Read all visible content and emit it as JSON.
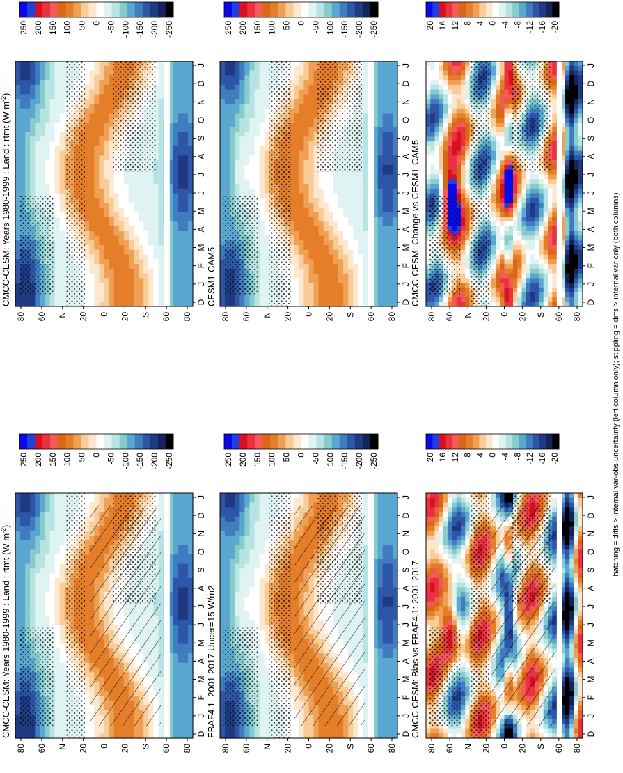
{
  "caption": "hatching = diffs > internal var-obs uncertainty (left column only); stippling = diffs > internal var only (both columns)",
  "colors": {
    "cmap_main": [
      "#0a0ae8",
      "#1f3fe0",
      "#d81020",
      "#e8323e",
      "#f45a5a",
      "#d96816",
      "#e47e28",
      "#efa054",
      "#f7cc96",
      "#fde8cf",
      "#ffffff",
      "#dff3f3",
      "#b8e3e3",
      "#87cccc",
      "#5aa8cf",
      "#3f7cc0",
      "#2d56a8",
      "#1f3a80",
      "#14245a",
      "#000000"
    ],
    "cmap_diff": [
      "#0a0ae8",
      "#1f3fe0",
      "#d81020",
      "#e8323e",
      "#f45a5a",
      "#d96816",
      "#e47e28",
      "#efa054",
      "#f7cc96",
      "#fde8cf",
      "#ffffff",
      "#dff3f3",
      "#b8e3e3",
      "#87cccc",
      "#5aa8cf",
      "#3f7cc0",
      "#2d56a8",
      "#1f3a80",
      "#14245a",
      "#000000"
    ]
  },
  "chart_data": [
    {
      "type": "heatmap",
      "id": "p1",
      "title": "CMCC-CESM: Years 1980-1999 : Land : rtmt (W m",
      "title_sup": "-2",
      "title_end": ")",
      "x": [
        "D",
        "J",
        "F",
        "M",
        "A",
        "M",
        "J",
        "J",
        "A",
        "S",
        "O",
        "N",
        "D",
        "J"
      ],
      "y_ticks": [
        "80",
        "60",
        "N",
        "20",
        "0",
        "20",
        "S",
        "60",
        "80"
      ],
      "y_range": [
        -90,
        90
      ],
      "colorbar_ticks": [
        "250",
        "200",
        "150",
        "100",
        "50",
        "0",
        "-50",
        "-100",
        "-150",
        "-200",
        "-250"
      ],
      "cmap": "main",
      "hatching": true,
      "stippling": true
    },
    {
      "type": "heatmap",
      "id": "p2",
      "title": "CMCC-CESM: Years 1980-1999 : Land : rtmt (W m",
      "title_sup": "-2",
      "title_end": ")",
      "x": [
        "D",
        "J",
        "F",
        "M",
        "A",
        "M",
        "J",
        "J",
        "A",
        "S",
        "O",
        "N",
        "D",
        "J"
      ],
      "y_ticks": [
        "80",
        "60",
        "N",
        "20",
        "0",
        "20",
        "S",
        "60",
        "80"
      ],
      "y_range": [
        -90,
        90
      ],
      "colorbar_ticks": [
        "250",
        "200",
        "150",
        "100",
        "50",
        "0",
        "-50",
        "-100",
        "-150",
        "-200",
        "-250"
      ],
      "cmap": "main",
      "hatching": false,
      "stippling": true
    },
    {
      "type": "heatmap",
      "id": "p3",
      "title": "EBAF4.1: 2001-2017 Uncer=15 W/m2",
      "x": [
        "D",
        "J",
        "F",
        "M",
        "A",
        "M",
        "J",
        "J",
        "A",
        "S",
        "O",
        "N",
        "D",
        "J"
      ],
      "y_ticks": [
        "80",
        "60",
        "N",
        "20",
        "0",
        "20",
        "S",
        "60",
        "80"
      ],
      "y_range": [
        -90,
        90
      ],
      "colorbar_ticks": [
        "250",
        "200",
        "150",
        "100",
        "50",
        "0",
        "-50",
        "-100",
        "-150",
        "-200",
        "-250"
      ],
      "cmap": "main",
      "hatching": true,
      "stippling": true
    },
    {
      "type": "heatmap",
      "id": "p4",
      "title": "CESM1-CAM5",
      "x": [
        "D",
        "J",
        "F",
        "M",
        "A",
        "M",
        "J",
        "J",
        "A",
        "S",
        "O",
        "N",
        "D",
        "J"
      ],
      "y_ticks": [
        "80",
        "60",
        "N",
        "20",
        "0",
        "20",
        "S",
        "60",
        "80"
      ],
      "y_range": [
        -90,
        90
      ],
      "colorbar_ticks": [
        "250",
        "200",
        "150",
        "100",
        "50",
        "0",
        "-50",
        "-100",
        "-150",
        "-200",
        "-250"
      ],
      "cmap": "main",
      "hatching": false,
      "stippling": true
    },
    {
      "type": "heatmap",
      "id": "p5",
      "title": "CMCC-CESM: Bias vs EBAF4.1: 2001-2017",
      "x": [
        "D",
        "J",
        "F",
        "M",
        "A",
        "M",
        "J",
        "J",
        "A",
        "S",
        "O",
        "N",
        "D",
        "J"
      ],
      "y_ticks": [
        "80",
        "60",
        "N",
        "20",
        "0",
        "20",
        "S",
        "60",
        "80"
      ],
      "y_range": [
        -90,
        90
      ],
      "colorbar_ticks": [
        "20",
        "16",
        "12",
        "8",
        "4",
        "0",
        "-4",
        "-8",
        "-12",
        "-16",
        "-20"
      ],
      "cmap": "diff",
      "hatching": true,
      "stippling": true
    },
    {
      "type": "heatmap",
      "id": "p6",
      "title": "CMCC-CESM: Change vs CESM1-CAM5",
      "x": [
        "D",
        "J",
        "F",
        "M",
        "A",
        "M",
        "J",
        "J",
        "A",
        "S",
        "O",
        "N",
        "D",
        "J"
      ],
      "y_ticks": [
        "80",
        "60",
        "N",
        "20",
        "0",
        "20",
        "S",
        "60",
        "80"
      ],
      "y_range": [
        -90,
        90
      ],
      "colorbar_ticks": [
        "20",
        "16",
        "12",
        "8",
        "4",
        "0",
        "-4",
        "-8",
        "-12",
        "-16",
        "-20"
      ],
      "cmap": "diff",
      "hatching": false,
      "stippling": true
    }
  ]
}
